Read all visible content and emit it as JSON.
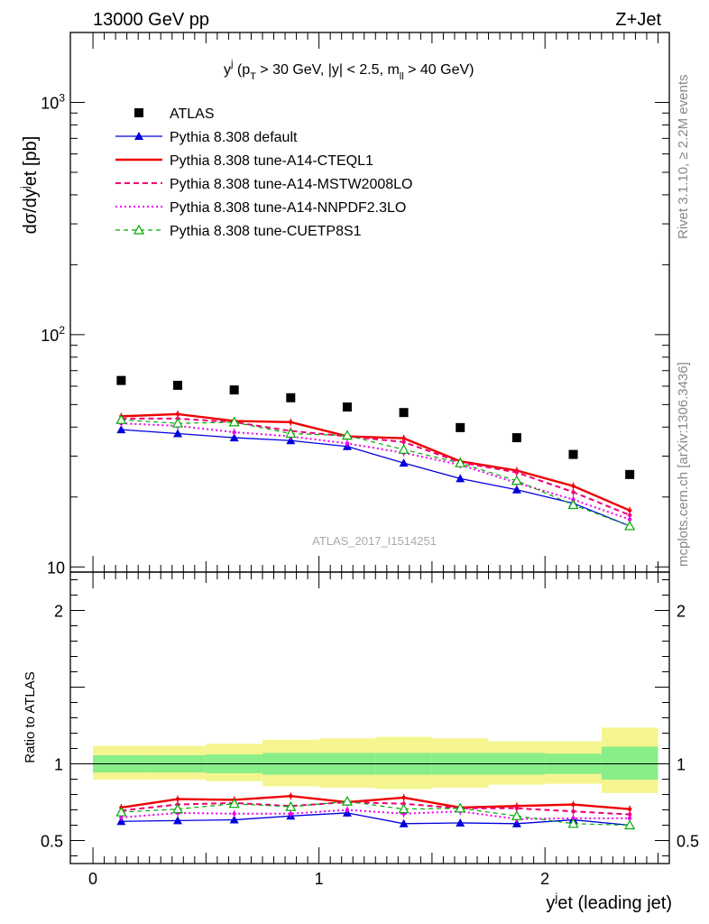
{
  "header": {
    "energy_label": "13000 GeV pp",
    "process_label": "Z+Jet",
    "rivet_label": "Rivet 3.1.10, ≥ 2.2M events",
    "mcplots_label": "mcplots.cern.ch [arXiv:1306.3436]",
    "analysis_label": "ATLAS_2017_I1514251"
  },
  "chart_data": [
    {
      "type": "line",
      "panel": "main",
      "title": "y^j (p_T > 30 GeV, |y| < 2.5, m_ll > 40 GeV)",
      "ylabel": "dσ/dy^jet [pb]",
      "yscale": "log",
      "xlim": [
        -0.1,
        2.55
      ],
      "ylim": [
        9.5,
        2000
      ],
      "y_ticks": [
        "10",
        "10^2",
        "10^3"
      ],
      "legend_position": "top-left",
      "x": [
        0.125,
        0.375,
        0.625,
        0.875,
        1.125,
        1.375,
        1.625,
        1.875,
        2.125,
        2.375
      ],
      "series": [
        {
          "name": "ATLAS",
          "style": "marker-square",
          "color": "#000000",
          "values": [
            63.5,
            60.5,
            57.8,
            53.5,
            48.8,
            46.2,
            39.8,
            36.0,
            30.5,
            25.0
          ]
        },
        {
          "name": "Pythia 8.308 default",
          "style": "solid-triangle",
          "color": "#0000dd",
          "values": [
            39.0,
            37.5,
            36.0,
            35.0,
            33.0,
            28.0,
            24.0,
            21.5,
            18.8,
            15.0
          ]
        },
        {
          "name": "Pythia 8.308 tune-A14-CTEQL1",
          "style": "solid-thick",
          "color": "#ee0000",
          "values": [
            44.5,
            45.5,
            42.5,
            42.0,
            36.5,
            35.8,
            28.5,
            26.0,
            22.3,
            17.5
          ]
        },
        {
          "name": "Pythia 8.308 tune-A14-MSTW2008LO",
          "style": "dashed",
          "color": "#ee0077",
          "values": [
            43.5,
            43.5,
            42.0,
            38.5,
            36.5,
            34.5,
            28.2,
            25.5,
            21.0,
            16.7
          ]
        },
        {
          "name": "Pythia 8.308 tune-A14-NNPDF2.3LO",
          "style": "dotted",
          "color": "#ee00ee",
          "values": [
            41.5,
            40.5,
            38.0,
            36.5,
            34.0,
            31.0,
            27.5,
            23.0,
            19.5,
            16.0
          ]
        },
        {
          "name": "Pythia 8.308 tune-CUETP8S1",
          "style": "dashed-open-triangle",
          "color": "#00aa00",
          "values": [
            43.0,
            41.5,
            42.0,
            37.5,
            36.8,
            32.0,
            28.0,
            23.5,
            18.5,
            15.0
          ]
        }
      ]
    },
    {
      "type": "line",
      "panel": "ratio",
      "xlabel": "y^jet (leading jet)",
      "ylabel": "Ratio to ATLAS",
      "xlim": [
        -0.1,
        2.55
      ],
      "ylim": [
        0.35,
        2.25
      ],
      "x_ticks": [
        "0",
        "1",
        "2"
      ],
      "y_ticks": [
        "0.5",
        "1",
        "2"
      ],
      "bin_edges": [
        0,
        0.25,
        0.5,
        0.75,
        1.0,
        1.25,
        1.5,
        1.75,
        2.0,
        2.25,
        2.5
      ],
      "bands": {
        "inner_color": "#88ee88",
        "outer_color": "#f5f590",
        "inner_low": [
          0.944,
          0.944,
          0.939,
          0.929,
          0.929,
          0.929,
          0.929,
          0.929,
          0.934,
          0.897
        ],
        "inner_high": [
          1.056,
          1.056,
          1.061,
          1.071,
          1.071,
          1.071,
          1.071,
          1.071,
          1.066,
          1.112
        ],
        "outer_low": [
          0.897,
          0.897,
          0.887,
          0.853,
          0.845,
          0.836,
          0.845,
          0.864,
          0.87,
          0.81
        ],
        "outer_high": [
          1.118,
          1.118,
          1.13,
          1.157,
          1.166,
          1.176,
          1.166,
          1.147,
          1.147,
          1.236
        ]
      },
      "x": [
        0.125,
        0.375,
        0.625,
        0.875,
        1.125,
        1.375,
        1.625,
        1.875,
        2.125,
        2.375
      ],
      "series": [
        {
          "name": "Pythia 8.308 default",
          "color": "#0000dd",
          "values": [
            0.625,
            0.63,
            0.635,
            0.66,
            0.68,
            0.61,
            0.615,
            0.61,
            0.635,
            0.6
          ]
        },
        {
          "name": "Pythia 8.308 tune-A14-CTEQL1",
          "color": "#ee0000",
          "values": [
            0.715,
            0.77,
            0.765,
            0.79,
            0.75,
            0.78,
            0.715,
            0.725,
            0.735,
            0.705
          ]
        },
        {
          "name": "Pythia 8.308 tune-A14-MSTW2008LO",
          "color": "#ee0077",
          "values": [
            0.695,
            0.735,
            0.745,
            0.725,
            0.75,
            0.74,
            0.71,
            0.71,
            0.69,
            0.67
          ]
        },
        {
          "name": "Pythia 8.308 tune-A14-NNPDF2.3LO",
          "color": "#ee00ee",
          "values": [
            0.65,
            0.68,
            0.675,
            0.675,
            0.7,
            0.675,
            0.69,
            0.64,
            0.645,
            0.645
          ]
        },
        {
          "name": "Pythia 8.308 tune-CUETP8S1",
          "color": "#00aa00",
          "values": [
            0.685,
            0.705,
            0.74,
            0.72,
            0.755,
            0.705,
            0.71,
            0.66,
            0.61,
            0.6
          ]
        }
      ]
    }
  ]
}
